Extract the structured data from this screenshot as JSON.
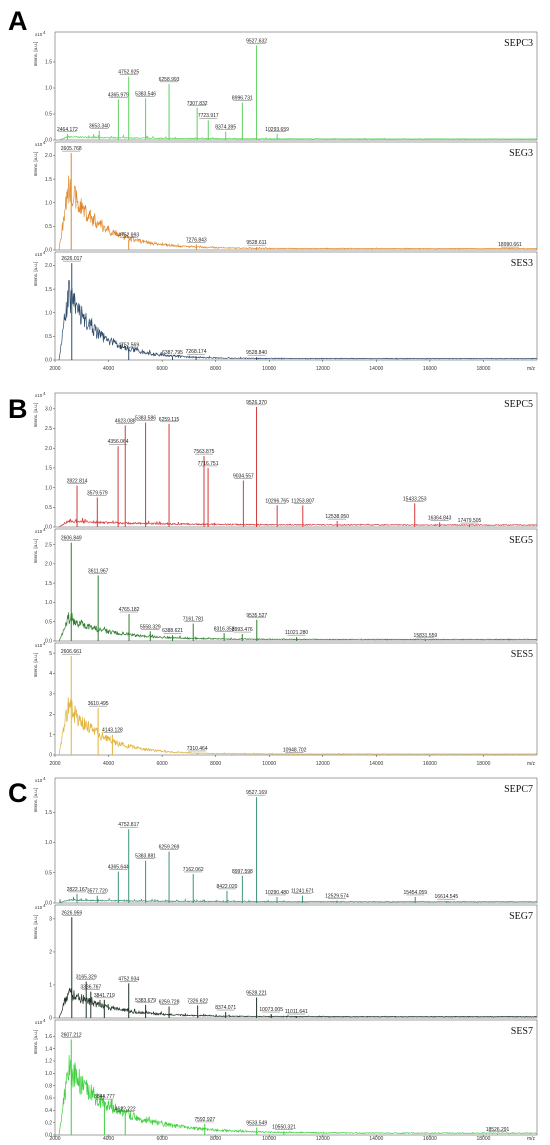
{
  "chart_data": [
    {
      "type": "line",
      "panel_label": "A",
      "xlabel": "m/z",
      "x_ticks": [
        2000,
        4000,
        6000,
        8000,
        10000,
        12000,
        14000,
        16000,
        18000
      ],
      "xlim": [
        2000,
        20000
      ],
      "ylabel": "Intens. [a.u.]",
      "y_exponent": "x10^4",
      "subplots": [
        {
          "name": "SEPC3",
          "color": "#5fd25f",
          "ylim": [
            0,
            2.0
          ],
          "y_ticks": [
            0.0,
            0.5,
            1.0,
            1.5
          ],
          "baseline": {
            "start": 0.06,
            "end": 0.02,
            "decay": 3000
          },
          "peaks": [
            {
              "mz": 2464.172,
              "h": 0.12,
              "label": "2464.172"
            },
            {
              "mz": 3653.34,
              "h": 0.18,
              "label": "3653.340"
            },
            {
              "mz": 4365.979,
              "h": 0.78,
              "label": "4365.979"
            },
            {
              "mz": 4752.925,
              "h": 1.22,
              "label": "4752.925"
            },
            {
              "mz": 5383.546,
              "h": 0.8,
              "label": "5383.546"
            },
            {
              "mz": 6258.993,
              "h": 1.08,
              "label": "6258.993"
            },
            {
              "mz": 7307.832,
              "h": 0.62,
              "label": "7307.832"
            },
            {
              "mz": 7723.917,
              "h": 0.38,
              "label": "7723.917"
            },
            {
              "mz": 8374.395,
              "h": 0.16,
              "label": "8374.395"
            },
            {
              "mz": 8996.731,
              "h": 0.72,
              "label": "8996.731"
            },
            {
              "mz": 9527.632,
              "h": 1.82,
              "label": "9527.632"
            },
            {
              "mz": 10293.659,
              "h": 0.12,
              "label": "10293.659"
            }
          ]
        },
        {
          "name": "SEG3",
          "color": "#e08a2e",
          "ylim": [
            0,
            2.2
          ],
          "y_ticks": [
            0.0,
            0.5,
            1.0,
            1.5,
            2.0
          ],
          "baseline": {
            "start": 1.3,
            "end": 0.03,
            "decay": 1300
          },
          "peaks": [
            {
              "mz": 2605.768,
              "h": 2.05,
              "label": "2605.768"
            },
            {
              "mz": 4752.993,
              "h": 0.22,
              "label": "4752.993"
            },
            {
              "mz": 7276.843,
              "h": 0.12,
              "label": "7276.843"
            },
            {
              "mz": 9528.611,
              "h": 0.06,
              "label": "9528.611"
            },
            {
              "mz": 18990.661,
              "h": 0.0,
              "label": "18990.661"
            }
          ]
        },
        {
          "name": "SES3",
          "color": "#2d4a6b",
          "ylim": [
            0,
            2.2
          ],
          "y_ticks": [
            0.0,
            0.5,
            1.0,
            1.5,
            2.0
          ],
          "baseline": {
            "start": 1.4,
            "end": 0.03,
            "decay": 1200
          },
          "peaks": [
            {
              "mz": 2626.017,
              "h": 2.05,
              "label": "2626.017"
            },
            {
              "mz": 4752.569,
              "h": 0.22,
              "label": "4752.569"
            },
            {
              "mz": 6387.795,
              "h": 0.06,
              "label": "6387.795"
            },
            {
              "mz": 7268.174,
              "h": 0.08,
              "label": "7268.174"
            },
            {
              "mz": 9528.84,
              "h": 0.06,
              "label": "9528.840"
            }
          ]
        }
      ]
    },
    {
      "type": "line",
      "panel_label": "B",
      "xlabel": "m/z",
      "x_ticks": [
        2000,
        4000,
        6000,
        8000,
        10000,
        12000,
        14000,
        16000,
        18000
      ],
      "xlim": [
        2000,
        20000
      ],
      "ylabel": "Intens. [a.u.]",
      "y_exponent": "x10^4",
      "subplots": [
        {
          "name": "SEPC5",
          "color": "#d43a3a",
          "ylim": [
            0,
            3.3
          ],
          "y_ticks": [
            0.0,
            0.5,
            1.0,
            1.5,
            2.0,
            2.5,
            3.0
          ],
          "baseline": {
            "start": 0.15,
            "end": 0.05,
            "decay": 3000
          },
          "peaks": [
            {
              "mz": 2822.814,
              "h": 1.05,
              "label": "2822.814"
            },
            {
              "mz": 3579.579,
              "h": 0.75,
              "label": "3579.579"
            },
            {
              "mz": 4356.064,
              "h": 2.05,
              "label": "4356.064"
            },
            {
              "mz": 4623.088,
              "h": 2.58,
              "label": "4623.088"
            },
            {
              "mz": 5383.586,
              "h": 2.65,
              "label": "5383.586"
            },
            {
              "mz": 6259.115,
              "h": 2.62,
              "label": "6259.115"
            },
            {
              "mz": 7563.875,
              "h": 1.8,
              "label": "7563.875"
            },
            {
              "mz": 7716.751,
              "h": 1.5,
              "label": "7716.751"
            },
            {
              "mz": 9034.557,
              "h": 1.18,
              "label": "9034.557"
            },
            {
              "mz": 9526.37,
              "h": 3.05,
              "label": "9526.370"
            },
            {
              "mz": 10296.765,
              "h": 0.55,
              "label": "10296.765"
            },
            {
              "mz": 11253.807,
              "h": 0.55,
              "label": "11253.807"
            },
            {
              "mz": 12538.05,
              "h": 0.15,
              "label": "12538.050"
            },
            {
              "mz": 15433.253,
              "h": 0.6,
              "label": "15433.253"
            },
            {
              "mz": 16364.843,
              "h": 0.12,
              "label": "16364.843"
            },
            {
              "mz": 17479.505,
              "h": 0.05,
              "label": "17479.505"
            }
          ]
        },
        {
          "name": "SEG5",
          "color": "#2e7d2e",
          "ylim": [
            0,
            2.8
          ],
          "y_ticks": [
            0.0,
            0.5,
            1.0,
            1.5,
            2.0,
            2.5
          ],
          "baseline": {
            "start": 0.6,
            "end": 0.04,
            "decay": 1500
          },
          "peaks": [
            {
              "mz": 2606.849,
              "h": 2.55,
              "label": "2606.849"
            },
            {
              "mz": 3611.967,
              "h": 1.7,
              "label": "3611.967"
            },
            {
              "mz": 4765.182,
              "h": 0.7,
              "label": "4765.182"
            },
            {
              "mz": 5558.329,
              "h": 0.25,
              "label": "5558.329"
            },
            {
              "mz": 6388.621,
              "h": 0.15,
              "label": "6388.621"
            },
            {
              "mz": 7161.781,
              "h": 0.45,
              "label": "7161.781"
            },
            {
              "mz": 8316.353,
              "h": 0.2,
              "label": "8316.353"
            },
            {
              "mz": 8993.476,
              "h": 0.18,
              "label": "8993.476"
            },
            {
              "mz": 9535.527,
              "h": 0.55,
              "label": "9535.527"
            },
            {
              "mz": 11021.28,
              "h": 0.1,
              "label": "11021.280"
            },
            {
              "mz": 15831.559,
              "h": 0.03,
              "label": "15831.559"
            }
          ]
        },
        {
          "name": "SES5",
          "color": "#e0b23a",
          "ylim": [
            0,
            5.3
          ],
          "y_ticks": [
            0,
            1,
            2,
            3,
            4,
            5
          ],
          "baseline": {
            "start": 2.5,
            "end": 0.05,
            "decay": 1200
          },
          "peaks": [
            {
              "mz": 2606.661,
              "h": 4.85,
              "label": "2606.661"
            },
            {
              "mz": 3610.495,
              "h": 2.3,
              "label": "3610.495"
            },
            {
              "mz": 4143.128,
              "h": 1.0,
              "label": "4143.128"
            },
            {
              "mz": 7310.464,
              "h": 0.1,
              "label": "7310.464"
            },
            {
              "mz": 10948.702,
              "h": 0.03,
              "label": "10948.702"
            }
          ]
        }
      ]
    },
    {
      "type": "line",
      "panel_label": "C",
      "xlabel": "m/z",
      "x_ticks": [
        2000,
        4000,
        6000,
        8000,
        10000,
        12000,
        14000,
        16000,
        18000
      ],
      "xlim": [
        2000,
        20000
      ],
      "ylabel": "Intens. [a.u.]",
      "y_exponent": "x10^4",
      "subplots": [
        {
          "name": "SEPC7",
          "color": "#3d9478",
          "ylim": [
            0,
            2.0
          ],
          "y_ticks": [
            0.0,
            0.5,
            1.0,
            1.5
          ],
          "baseline": {
            "start": 0.05,
            "end": 0.02,
            "decay": 3000
          },
          "peaks": [
            {
              "mz": 2822.167,
              "h": 0.15,
              "label": "2822.167"
            },
            {
              "mz": 3577.72,
              "h": 0.12,
              "label": "3577.720"
            },
            {
              "mz": 4365.644,
              "h": 0.52,
              "label": "4365.644"
            },
            {
              "mz": 4752.817,
              "h": 1.22,
              "label": "4752.817"
            },
            {
              "mz": 5383.881,
              "h": 0.7,
              "label": "5383.881"
            },
            {
              "mz": 6259.269,
              "h": 0.85,
              "label": "6259.269"
            },
            {
              "mz": 7162.062,
              "h": 0.48,
              "label": "7162.062"
            },
            {
              "mz": 8422.02,
              "h": 0.2,
              "label": "8422.020"
            },
            {
              "mz": 8997.598,
              "h": 0.45,
              "label": "8997.598"
            },
            {
              "mz": 9527.169,
              "h": 1.75,
              "label": "9527.169"
            },
            {
              "mz": 10290.48,
              "h": 0.1,
              "label": "10290.480"
            },
            {
              "mz": 11241.671,
              "h": 0.12,
              "label": "11241.671"
            },
            {
              "mz": 12529.574,
              "h": 0.04,
              "label": "12529.574"
            },
            {
              "mz": 15454.059,
              "h": 0.1,
              "label": "15454.059"
            },
            {
              "mz": 16614.545,
              "h": 0.03,
              "label": "16614.545"
            }
          ]
        },
        {
          "name": "SEG7",
          "color": "#1f3324",
          "ylim": [
            0,
            3.3
          ],
          "y_ticks": [
            0,
            1,
            2,
            3
          ],
          "baseline": {
            "start": 0.8,
            "end": 0.04,
            "decay": 1500
          },
          "peaks": [
            {
              "mz": 2626.959,
              "h": 3.05,
              "label": "2626.959"
            },
            {
              "mz": 3165.329,
              "h": 1.1,
              "label": "3165.329"
            },
            {
              "mz": 3336.767,
              "h": 0.8,
              "label": "3336.767"
            },
            {
              "mz": 3841.719,
              "h": 0.55,
              "label": "3841.719"
            },
            {
              "mz": 4752.934,
              "h": 1.05,
              "label": "4752.934"
            },
            {
              "mz": 5383.679,
              "h": 0.4,
              "label": "5383.679"
            },
            {
              "mz": 6259.728,
              "h": 0.35,
              "label": "6259.728"
            },
            {
              "mz": 7326.622,
              "h": 0.38,
              "label": "7326.622"
            },
            {
              "mz": 8374.071,
              "h": 0.18,
              "label": "8374.071"
            },
            {
              "mz": 9528.221,
              "h": 0.62,
              "label": "9528.221"
            },
            {
              "mz": 10073.005,
              "h": 0.12,
              "label": "10073.005"
            },
            {
              "mz": 11011.641,
              "h": 0.06,
              "label": "11011.641"
            }
          ]
        },
        {
          "name": "SES7",
          "color": "#3ecf3e",
          "ylim": [
            0,
            1.8
          ],
          "y_ticks": [
            0.0,
            0.2,
            0.4,
            0.6,
            0.8,
            1.0,
            1.2,
            1.4,
            1.6
          ],
          "baseline": {
            "start": 1.1,
            "end": 0.03,
            "decay": 1800
          },
          "peaks": [
            {
              "mz": 2607.212,
              "h": 1.55,
              "label": "2607.212"
            },
            {
              "mz": 3844.777,
              "h": 0.55,
              "label": "3844.777"
            },
            {
              "mz": 4622.222,
              "h": 0.35,
              "label": "4622.222"
            },
            {
              "mz": 7592.927,
              "h": 0.18,
              "label": "7592.927"
            },
            {
              "mz": 9533.549,
              "h": 0.12,
              "label": "9533.549"
            },
            {
              "mz": 10550.321,
              "h": 0.06,
              "label": "10550.321"
            },
            {
              "mz": 18526.291,
              "h": 0.01,
              "label": "18526.291"
            }
          ]
        }
      ]
    }
  ]
}
